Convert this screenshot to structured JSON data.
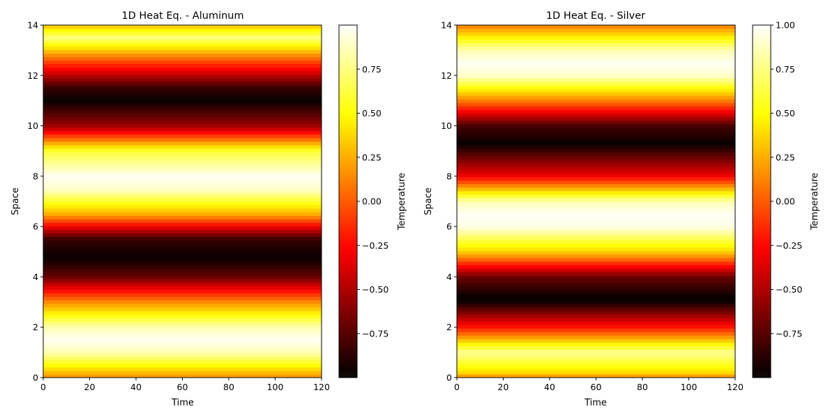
{
  "chart_data": [
    {
      "type": "heatmap",
      "title": "1D Heat Eq. - Aluminum",
      "xlabel": "Time",
      "ylabel": "Space",
      "xlim": [
        0,
        120
      ],
      "ylim": [
        0,
        14
      ],
      "xticks": [
        0,
        20,
        40,
        60,
        80,
        100,
        120
      ],
      "yticks": [
        0,
        2,
        4,
        6,
        8,
        10,
        12,
        14
      ],
      "colormap": "hot",
      "colorbar": {
        "label": "Temperature",
        "range": [
          -1,
          1
        ],
        "ticks": [
          -0.75,
          -0.5,
          -0.25,
          0.0,
          0.25,
          0.5,
          0.75
        ],
        "tick_labels": [
          "−0.75",
          "−0.50",
          "−0.25",
          "0.00",
          "0.25",
          "0.50",
          "0.75"
        ]
      },
      "space_profile": {
        "description": "temperature constant over time, varies with space",
        "space": [
          0,
          1,
          1.5,
          2,
          3,
          4,
          4.75,
          5.5,
          6.5,
          7.5,
          8,
          9,
          10,
          11,
          11.5,
          12.5,
          13.5,
          14
        ],
        "temperature": [
          0.15,
          0.85,
          0.98,
          0.85,
          0.15,
          -0.7,
          -0.98,
          -0.85,
          0.25,
          0.9,
          0.98,
          0.6,
          -0.55,
          -0.98,
          -0.85,
          -0.1,
          0.75,
          0.3
        ]
      }
    },
    {
      "type": "heatmap",
      "title": "1D Heat Eq. - Silver",
      "xlabel": "Time",
      "ylabel": "Space",
      "xlim": [
        0,
        120
      ],
      "ylim": [
        0,
        14
      ],
      "xticks": [
        0,
        20,
        40,
        60,
        80,
        100,
        120
      ],
      "yticks": [
        0,
        2,
        4,
        6,
        8,
        10,
        12,
        14
      ],
      "colormap": "hot",
      "colorbar": {
        "label": "Temperature",
        "range": [
          -1,
          1
        ],
        "ticks": [
          -0.75,
          -0.5,
          -0.25,
          0.0,
          0.25,
          0.5,
          0.75,
          1.0
        ],
        "tick_labels": [
          "−0.75",
          "−0.50",
          "−0.25",
          "0.00",
          "0.25",
          "0.50",
          "0.75",
          "1.00"
        ]
      },
      "space_profile": {
        "description": "temperature constant over time, varies with space",
        "space": [
          0,
          0.15,
          1,
          2,
          3,
          3.2,
          4,
          5,
          6,
          6.5,
          7,
          8,
          9.3,
          10,
          11,
          12,
          12.5,
          13,
          14
        ],
        "temperature": [
          0.1,
          0.35,
          0.8,
          -0.2,
          -0.95,
          -0.98,
          -0.7,
          0.35,
          0.95,
          0.98,
          0.85,
          -0.3,
          -0.98,
          -0.8,
          0.1,
          0.9,
          0.98,
          0.85,
          0.1
        ]
      }
    }
  ]
}
